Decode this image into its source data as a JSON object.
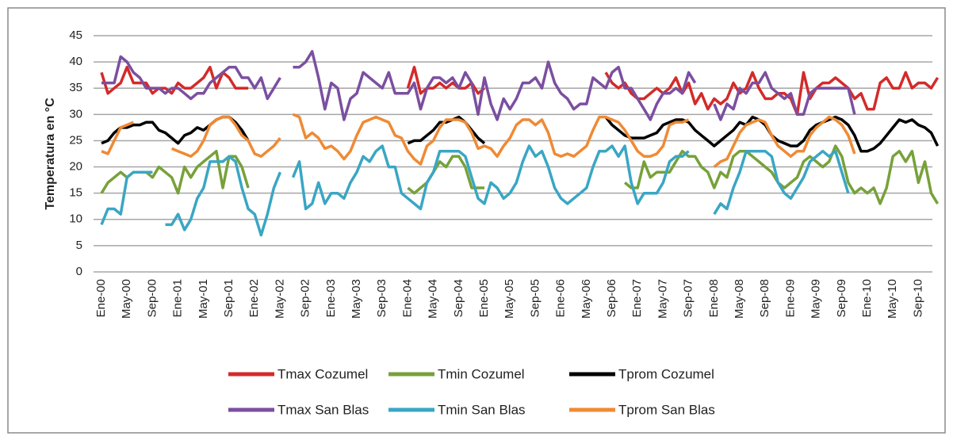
{
  "chart_data": {
    "type": "line",
    "y_label": "Temperatura en °C",
    "categories": [
      "Ene-00",
      null,
      null,
      null,
      "May-00",
      null,
      null,
      null,
      "Sep-00",
      null,
      null,
      null,
      "Ene-01",
      null,
      null,
      null,
      "May-01",
      null,
      null,
      null,
      "Sep-01",
      null,
      null,
      null,
      "Ene-02",
      null,
      null,
      null,
      "May-02",
      null,
      null,
      null,
      "Sep-02",
      null,
      null,
      null,
      "Ene-03",
      null,
      null,
      null,
      "May-03",
      null,
      null,
      null,
      "Sep-03",
      null,
      null,
      null,
      "Ene-04",
      null,
      null,
      null,
      "May-04",
      null,
      null,
      null,
      "Sep-04",
      null,
      null,
      null,
      "Ene-05",
      null,
      null,
      null,
      "May-05",
      null,
      null,
      null,
      "Sep-05",
      null,
      null,
      null,
      "Ene-06",
      null,
      null,
      null,
      "May-06",
      null,
      null,
      null,
      "Sep-06",
      null,
      null,
      null,
      "Ene-07",
      null,
      null,
      null,
      "May-07",
      null,
      null,
      null,
      "Sep-07",
      null,
      null,
      null,
      "Ene-08",
      null,
      null,
      null,
      "May-08",
      null,
      null,
      null,
      "Sep-08",
      null,
      null,
      null,
      "Ene-09",
      null,
      null,
      null,
      "May-09",
      null,
      null,
      null,
      "Sep-09",
      null,
      null,
      null,
      "Ene-10",
      null,
      null,
      null,
      "May-10",
      null,
      null,
      null,
      "Sep-10",
      null,
      null,
      null
    ],
    "ylim": [
      0,
      45
    ],
    "yticks": [
      0,
      5,
      10,
      15,
      20,
      25,
      30,
      35,
      40,
      45
    ],
    "grid": true,
    "series": [
      {
        "name": "Tmax Cozumel",
        "color": "#d42a2a",
        "values": [
          38,
          34,
          35,
          36,
          39,
          36,
          36,
          36,
          34,
          35,
          35,
          34,
          36,
          35,
          35,
          36,
          37,
          39,
          35,
          38,
          37,
          35,
          35,
          35,
          null,
          null,
          null,
          null,
          null,
          null,
          null,
          null,
          null,
          null,
          null,
          null,
          null,
          null,
          null,
          null,
          null,
          null,
          null,
          null,
          null,
          null,
          null,
          null,
          35,
          39,
          34,
          35,
          35,
          36,
          35,
          36,
          35,
          35,
          36,
          34,
          35,
          null,
          null,
          null,
          null,
          null,
          null,
          null,
          null,
          null,
          null,
          null,
          null,
          null,
          null,
          null,
          null,
          null,
          null,
          38,
          36,
          35,
          36,
          34,
          33,
          33,
          34,
          35,
          34,
          35,
          37,
          34,
          36,
          32,
          34,
          31,
          33,
          32,
          33,
          36,
          34,
          35,
          38,
          35,
          33,
          33,
          34,
          34,
          33,
          30,
          38,
          33,
          35,
          36,
          36,
          37,
          36,
          35,
          33,
          34,
          31,
          31,
          36,
          37,
          35,
          35,
          38,
          35,
          36,
          36,
          35,
          37
        ]
      },
      {
        "name": "Tmin Cozumel",
        "color": "#77a13a",
        "values": [
          15,
          17,
          18,
          19,
          18,
          19,
          19,
          19,
          18,
          20,
          19,
          18,
          15,
          20,
          18,
          20,
          21,
          22,
          23,
          16,
          22,
          22,
          20,
          16,
          null,
          null,
          null,
          null,
          null,
          null,
          null,
          null,
          null,
          null,
          null,
          null,
          null,
          null,
          null,
          null,
          null,
          null,
          null,
          null,
          null,
          null,
          null,
          null,
          16,
          15,
          16,
          17,
          19,
          21,
          20,
          22,
          22,
          20,
          16,
          16,
          16,
          null,
          null,
          null,
          null,
          null,
          null,
          null,
          null,
          null,
          null,
          null,
          null,
          null,
          null,
          null,
          null,
          null,
          null,
          null,
          null,
          null,
          17,
          16,
          16,
          21,
          18,
          19,
          19,
          19,
          21,
          23,
          22,
          22,
          20,
          19,
          16,
          19,
          18,
          22,
          23,
          23,
          22,
          21,
          20,
          19,
          17,
          16,
          17,
          18,
          21,
          22,
          21,
          20,
          21,
          24,
          22,
          17,
          15,
          16,
          15,
          16,
          13,
          16,
          22,
          23,
          21,
          23,
          17,
          21,
          15,
          13
        ]
      },
      {
        "name": "Tprom Cozumel",
        "color": "#000000",
        "values": [
          24.5,
          25,
          26.5,
          27.5,
          27.5,
          28,
          28,
          28.5,
          28.5,
          27,
          26.5,
          25.5,
          24.5,
          26,
          26.5,
          27.5,
          27,
          28,
          29,
          29.5,
          29.5,
          28.5,
          27,
          25,
          null,
          null,
          null,
          null,
          null,
          null,
          null,
          null,
          null,
          null,
          null,
          null,
          null,
          null,
          null,
          null,
          null,
          null,
          null,
          null,
          null,
          null,
          null,
          null,
          24.5,
          25,
          25,
          26,
          27,
          28.5,
          28.5,
          29,
          29.5,
          28.5,
          27,
          25.5,
          24.5,
          null,
          null,
          null,
          null,
          null,
          null,
          null,
          null,
          null,
          null,
          null,
          null,
          null,
          null,
          null,
          null,
          null,
          null,
          29.5,
          28,
          27,
          26,
          25.5,
          25.5,
          25.5,
          26,
          26.5,
          28,
          28.5,
          29,
          29,
          28.5,
          27,
          26,
          25,
          24,
          25,
          26,
          27,
          28.5,
          28,
          29.5,
          29,
          28,
          26,
          25,
          24.5,
          24,
          24,
          25,
          27,
          28,
          28.5,
          29,
          29.5,
          29,
          28,
          26,
          23,
          23,
          23.5,
          24.5,
          26,
          27.5,
          29,
          28.5,
          29,
          28,
          27.5,
          26.5,
          24
        ]
      },
      {
        "name": "Tmax San Blas",
        "color": "#7b4fa0",
        "values": [
          36,
          36,
          36,
          41,
          40,
          38,
          37,
          35,
          35,
          35,
          34,
          35,
          35,
          34,
          33,
          34,
          34,
          36,
          37,
          38,
          39,
          39,
          37,
          37,
          35,
          37,
          33,
          35,
          37,
          null,
          39,
          39,
          40,
          42,
          37,
          31,
          36,
          35,
          29,
          33,
          34,
          38,
          37,
          36,
          35,
          38,
          34,
          34,
          34,
          36,
          31,
          35,
          37,
          37,
          36,
          37,
          35,
          38,
          36,
          30,
          37,
          32,
          29,
          33,
          31,
          33,
          36,
          36,
          37,
          35,
          40,
          36,
          34,
          33,
          31,
          32,
          32,
          37,
          36,
          35,
          38,
          39,
          35,
          35,
          33,
          31,
          29,
          32,
          34,
          34,
          35,
          34,
          38,
          36,
          null,
          null,
          32,
          29,
          32,
          31,
          35,
          34,
          36,
          36,
          38,
          35,
          34,
          33,
          34,
          30,
          30,
          34,
          35,
          35,
          35,
          35,
          35,
          35,
          30,
          null,
          null,
          null,
          null,
          null,
          null,
          null,
          null,
          null,
          null,
          null,
          null,
          null
        ]
      },
      {
        "name": "Tmin San Blas",
        "color": "#3aa6c4",
        "values": [
          9,
          12,
          12,
          11,
          18,
          19,
          19,
          19,
          19,
          null,
          9,
          9,
          11,
          8,
          10,
          14,
          16,
          21,
          21,
          21,
          22,
          21,
          16,
          12,
          11,
          7,
          11,
          16,
          19,
          null,
          18,
          21,
          12,
          13,
          17,
          13,
          15,
          15,
          14,
          17,
          19,
          22,
          21,
          23,
          24,
          20,
          20,
          15,
          14,
          13,
          12,
          17,
          19,
          23,
          23,
          23,
          23,
          22,
          18,
          14,
          13,
          17,
          16,
          14,
          15,
          17,
          21,
          24,
          22,
          23,
          20,
          16,
          14,
          13,
          14,
          15,
          16,
          20,
          23,
          23,
          24,
          22,
          24,
          17,
          13,
          15,
          15,
          15,
          17,
          21,
          22,
          22,
          23,
          null,
          null,
          null,
          11,
          13,
          12,
          16,
          19,
          23,
          23,
          23,
          23,
          22,
          17,
          15,
          14,
          16,
          18,
          21,
          22,
          23,
          22,
          23,
          19,
          15,
          null,
          null,
          null,
          null,
          null,
          null,
          null,
          null,
          null,
          null,
          null,
          null,
          null,
          null
        ]
      },
      {
        "name": "Tprom San Blas",
        "color": "#ef8a35",
        "values": [
          23,
          22.5,
          25,
          27.5,
          28,
          28.5,
          null,
          null,
          null,
          null,
          null,
          23.5,
          23,
          22.5,
          22,
          23,
          25,
          28,
          29,
          29.5,
          29.5,
          28,
          26,
          25,
          22.5,
          22,
          23,
          24,
          25.5,
          null,
          30,
          29.5,
          25.5,
          26.5,
          25.5,
          23.5,
          24,
          23,
          21.5,
          23,
          26,
          28.5,
          29,
          29.5,
          29,
          28.5,
          26,
          25.5,
          23,
          21.5,
          20.5,
          24,
          25,
          27.5,
          29,
          29,
          29,
          28.5,
          26.5,
          23.5,
          24,
          23.5,
          22,
          24,
          25.5,
          28,
          29,
          29,
          28,
          29,
          26.5,
          22.5,
          22,
          22.5,
          22,
          23,
          24,
          27,
          29.5,
          29.5,
          29,
          28.5,
          27,
          25,
          23,
          22,
          22,
          22.5,
          24,
          28,
          28.5,
          28.5,
          29,
          null,
          null,
          null,
          20,
          21,
          21.5,
          24,
          26.5,
          28,
          28.5,
          29,
          28.5,
          26,
          24,
          23,
          22,
          23,
          23,
          26,
          27.5,
          28.5,
          29.5,
          29,
          28,
          26,
          22.5,
          null,
          null,
          null,
          null,
          null,
          null,
          null,
          null,
          null,
          null,
          null,
          null,
          null
        ]
      }
    ]
  }
}
